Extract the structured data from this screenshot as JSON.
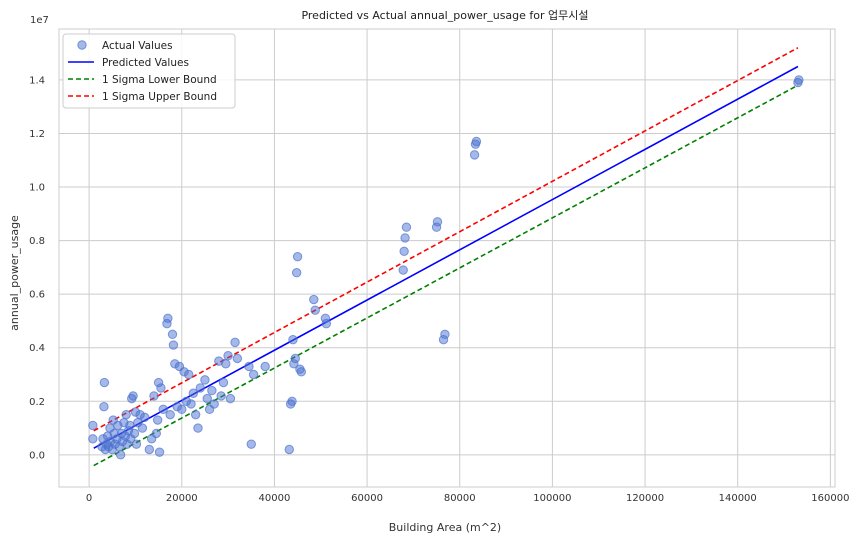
{
  "chart_data": {
    "type": "scatter",
    "title": "Predicted vs Actual annual_power_usage for 업무시설",
    "xlabel": "Building Area (m^2)",
    "ylabel": "annual_power_usage",
    "y_offset_text": "1e7",
    "xlim": [
      -6500,
      161000
    ],
    "ylim": [
      -1200000,
      15900000
    ],
    "xticks": [
      0,
      20000,
      40000,
      60000,
      80000,
      100000,
      120000,
      140000,
      160000
    ],
    "xtick_labels": [
      "0",
      "20000",
      "40000",
      "60000",
      "80000",
      "100000",
      "120000",
      "140000",
      "160000"
    ],
    "yticks": [
      0,
      2000000,
      4000000,
      6000000,
      8000000,
      10000000,
      12000000,
      14000000
    ],
    "ytick_labels": [
      "0.0",
      "0.2",
      "0.4",
      "0.6",
      "0.8",
      "1.0",
      "1.2",
      "1.4"
    ],
    "grid": true,
    "legend_position": "top-left",
    "colors": {
      "actual": "#4c72d0",
      "predicted": "#0000ff",
      "lower": "#008000",
      "upper": "#ff0000"
    },
    "series": [
      {
        "name": "Actual Values",
        "kind": "scatter",
        "points": [
          [
            800,
            600000
          ],
          [
            800,
            1100000
          ],
          [
            2800,
            300000
          ],
          [
            3000,
            600000
          ],
          [
            3200,
            1800000
          ],
          [
            3300,
            2700000
          ],
          [
            3500,
            200000
          ],
          [
            3800,
            400000
          ],
          [
            4000,
            700000
          ],
          [
            4200,
            300000
          ],
          [
            4500,
            1000000
          ],
          [
            4600,
            500000
          ],
          [
            5000,
            200000
          ],
          [
            5200,
            1300000
          ],
          [
            5400,
            800000
          ],
          [
            5600,
            400000
          ],
          [
            6000,
            600000
          ],
          [
            6200,
            1100000
          ],
          [
            6500,
            300000
          ],
          [
            6800,
            0
          ],
          [
            7000,
            800000
          ],
          [
            7200,
            500000
          ],
          [
            7500,
            1200000
          ],
          [
            7800,
            700000
          ],
          [
            8000,
            1500000
          ],
          [
            8200,
            400000
          ],
          [
            8500,
            900000
          ],
          [
            8800,
            1100000
          ],
          [
            9000,
            600000
          ],
          [
            9200,
            2100000
          ],
          [
            9500,
            2200000
          ],
          [
            9800,
            800000
          ],
          [
            10000,
            1600000
          ],
          [
            10200,
            400000
          ],
          [
            10500,
            1200000
          ],
          [
            11000,
            1500000
          ],
          [
            11500,
            1000000
          ],
          [
            12000,
            1400000
          ],
          [
            13000,
            200000
          ],
          [
            13500,
            600000
          ],
          [
            14000,
            2200000
          ],
          [
            14500,
            800000
          ],
          [
            14800,
            1300000
          ],
          [
            15000,
            2700000
          ],
          [
            15200,
            100000
          ],
          [
            15500,
            2500000
          ],
          [
            16000,
            1700000
          ],
          [
            16800,
            4900000
          ],
          [
            17000,
            5100000
          ],
          [
            17500,
            1500000
          ],
          [
            18000,
            4500000
          ],
          [
            18200,
            4100000
          ],
          [
            18500,
            3400000
          ],
          [
            19000,
            1800000
          ],
          [
            19500,
            3300000
          ],
          [
            20000,
            1700000
          ],
          [
            20500,
            3100000
          ],
          [
            21000,
            2000000
          ],
          [
            21500,
            3000000
          ],
          [
            22000,
            1900000
          ],
          [
            22500,
            2300000
          ],
          [
            23000,
            1500000
          ],
          [
            23500,
            1000000
          ],
          [
            24000,
            2500000
          ],
          [
            25000,
            2800000
          ],
          [
            25500,
            2100000
          ],
          [
            26000,
            1700000
          ],
          [
            26500,
            2400000
          ],
          [
            27000,
            1900000
          ],
          [
            28000,
            3500000
          ],
          [
            28500,
            2200000
          ],
          [
            29000,
            2700000
          ],
          [
            29500,
            3400000
          ],
          [
            30000,
            3700000
          ],
          [
            30500,
            2100000
          ],
          [
            31500,
            4200000
          ],
          [
            32000,
            3600000
          ],
          [
            34500,
            3300000
          ],
          [
            35000,
            400000
          ],
          [
            35500,
            3000000
          ],
          [
            38000,
            3300000
          ],
          [
            43200,
            200000
          ],
          [
            43500,
            1900000
          ],
          [
            43800,
            2000000
          ],
          [
            44000,
            4300000
          ],
          [
            44200,
            3400000
          ],
          [
            44500,
            3600000
          ],
          [
            44800,
            6800000
          ],
          [
            45000,
            7400000
          ],
          [
            45500,
            3200000
          ],
          [
            45800,
            3100000
          ],
          [
            48500,
            5800000
          ],
          [
            48800,
            5400000
          ],
          [
            51000,
            5100000
          ],
          [
            51200,
            4900000
          ],
          [
            67800,
            6900000
          ],
          [
            68000,
            7600000
          ],
          [
            68200,
            8100000
          ],
          [
            68500,
            8500000
          ],
          [
            75000,
            8500000
          ],
          [
            75200,
            8700000
          ],
          [
            76500,
            4300000
          ],
          [
            76800,
            4500000
          ],
          [
            83200,
            11200000
          ],
          [
            83400,
            11600000
          ],
          [
            83600,
            11700000
          ],
          [
            153000,
            13900000
          ],
          [
            153200,
            14000000
          ]
        ]
      },
      {
        "name": "Predicted Values",
        "kind": "line",
        "x": [
          1000,
          153000
        ],
        "y": [
          250000,
          14500000
        ]
      },
      {
        "name": "1 Sigma Lower Bound",
        "kind": "line",
        "dash": true,
        "x": [
          1000,
          153000
        ],
        "y": [
          -400000,
          13800000
        ]
      },
      {
        "name": "1 Sigma Upper Bound",
        "kind": "line",
        "dash": true,
        "x": [
          1000,
          153000
        ],
        "y": [
          900000,
          15200000
        ]
      }
    ]
  }
}
